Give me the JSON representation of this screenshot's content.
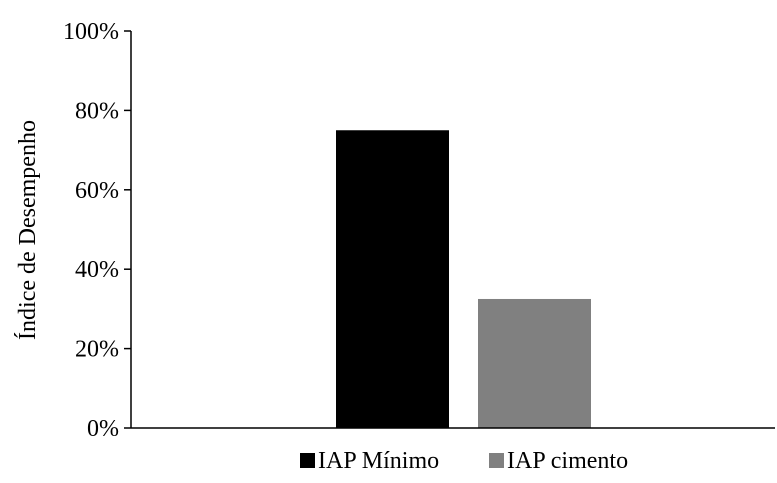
{
  "chart_data": {
    "type": "bar",
    "title": "",
    "xlabel": "",
    "ylabel": "Índice de Desempenho",
    "ylim": [
      0,
      100
    ],
    "yticks": [
      0,
      20,
      40,
      60,
      80,
      100
    ],
    "ytick_labels": [
      "0%",
      "20%",
      "40%",
      "60%",
      "80%",
      "100%"
    ],
    "grid": false,
    "legend_position": "bottom",
    "series": [
      {
        "name": "IAP Mínimo",
        "value": 75,
        "color": "#000000"
      },
      {
        "name": "IAP cimento",
        "value": 32.5,
        "color": "#808080"
      }
    ]
  }
}
